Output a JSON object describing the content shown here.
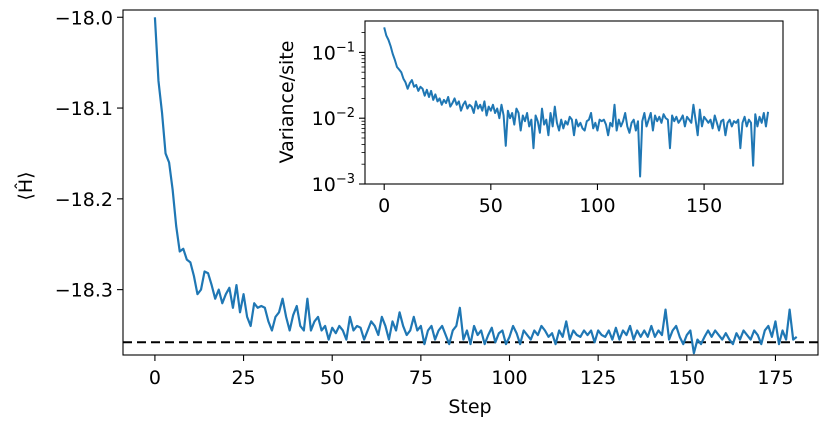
{
  "chart_data": [
    {
      "type": "line",
      "title": "",
      "xlabel": "Step",
      "ylabel": "⟨Ĥ⟩",
      "xlim": [
        -9,
        187
      ],
      "ylim": [
        -18.372,
        -17.992
      ],
      "xticks": [
        0,
        25,
        50,
        75,
        100,
        125,
        150,
        175
      ],
      "yticks": [
        -18.0,
        -18.1,
        -18.2,
        -18.3
      ],
      "ytick_labels": [
        "−18.0",
        "−18.1",
        "−18.2",
        "−18.3"
      ],
      "grid": false,
      "reference_line": {
        "y": -18.358,
        "style": "dashed",
        "color": "#000000"
      },
      "series": [
        {
          "color": "#1f77b4",
          "values": [
            -18.0,
            -18.07,
            -18.105,
            -18.15,
            -18.16,
            -18.19,
            -18.23,
            -18.258,
            -18.255,
            -18.267,
            -18.27,
            -18.285,
            -18.305,
            -18.3,
            -18.28,
            -18.282,
            -18.295,
            -18.31,
            -18.3,
            -18.315,
            -18.305,
            -18.298,
            -18.32,
            -18.295,
            -18.325,
            -18.305,
            -18.33,
            -18.34,
            -18.315,
            -18.32,
            -18.318,
            -18.32,
            -18.335,
            -18.345,
            -18.33,
            -18.325,
            -18.31,
            -18.33,
            -18.345,
            -18.328,
            -18.318,
            -18.34,
            -18.345,
            -18.31,
            -18.345,
            -18.335,
            -18.33,
            -18.345,
            -18.34,
            -18.355,
            -18.342,
            -18.348,
            -18.34,
            -18.345,
            -18.355,
            -18.33,
            -18.345,
            -18.34,
            -18.342,
            -18.355,
            -18.345,
            -18.335,
            -18.34,
            -18.35,
            -18.33,
            -18.34,
            -18.355,
            -18.335,
            -18.345,
            -18.325,
            -18.34,
            -18.35,
            -18.345,
            -18.33,
            -18.345,
            -18.34,
            -18.36,
            -18.345,
            -18.34,
            -18.355,
            -18.345,
            -18.34,
            -18.35,
            -18.36,
            -18.345,
            -18.34,
            -18.32,
            -18.355,
            -18.345,
            -18.36,
            -18.34,
            -18.35,
            -18.345,
            -18.36,
            -18.35,
            -18.342,
            -18.358,
            -18.348,
            -18.345,
            -18.36,
            -18.352,
            -18.34,
            -18.348,
            -18.36,
            -18.345,
            -18.35,
            -18.355,
            -18.345,
            -18.35,
            -18.34,
            -18.345,
            -18.352,
            -18.348,
            -18.36,
            -18.345,
            -18.352,
            -18.335,
            -18.355,
            -18.345,
            -18.35,
            -18.352,
            -18.345,
            -18.35,
            -18.345,
            -18.358,
            -18.345,
            -18.35,
            -18.352,
            -18.345,
            -18.355,
            -18.342,
            -18.355,
            -18.345,
            -18.35,
            -18.34,
            -18.355,
            -18.345,
            -18.352,
            -18.345,
            -18.352,
            -18.34,
            -18.352,
            -18.345,
            -18.35,
            -18.322,
            -18.355,
            -18.345,
            -18.34,
            -18.352,
            -18.36,
            -18.35,
            -18.345,
            -18.37,
            -18.355,
            -18.36,
            -18.352,
            -18.345,
            -18.352,
            -18.345,
            -18.35,
            -18.355,
            -18.348,
            -18.355,
            -18.36,
            -18.348,
            -18.355,
            -18.345,
            -18.35,
            -18.355,
            -18.345,
            -18.35,
            -18.36,
            -18.345,
            -18.34,
            -18.352,
            -18.335,
            -18.36,
            -18.345,
            -18.355,
            -18.322,
            -18.355,
            -18.352
          ]
        }
      ]
    },
    {
      "type": "line",
      "title": "",
      "xlabel": "",
      "ylabel": "Variance/site",
      "xlim": [
        -9,
        187
      ],
      "ylim": [
        0.001,
        0.3
      ],
      "yscale": "log",
      "xticks": [
        0,
        50,
        100,
        150
      ],
      "yticks": [
        0.001,
        0.01,
        0.1
      ],
      "ytick_labels": [
        {
          "base": "10",
          "exp": "−3"
        },
        {
          "base": "10",
          "exp": "−2"
        },
        {
          "base": "10",
          "exp": "−1"
        }
      ],
      "grid": false,
      "series": [
        {
          "color": "#1f77b4",
          "values": [
            0.24,
            0.18,
            0.155,
            0.125,
            0.095,
            0.077,
            0.06,
            0.055,
            0.05,
            0.04,
            0.035,
            0.028,
            0.034,
            0.038,
            0.03,
            0.032,
            0.026,
            0.03,
            0.028,
            0.022,
            0.027,
            0.021,
            0.026,
            0.019,
            0.023,
            0.018,
            0.02,
            0.016,
            0.019,
            0.017,
            0.021,
            0.015,
            0.017,
            0.02,
            0.016,
            0.018,
            0.013,
            0.016,
            0.018,
            0.014,
            0.016,
            0.015,
            0.012,
            0.018,
            0.014,
            0.016,
            0.013,
            0.018,
            0.011,
            0.015,
            0.013,
            0.016,
            0.012,
            0.014,
            0.01,
            0.016,
            0.011,
            0.0038,
            0.013,
            0.01,
            0.012,
            0.008,
            0.014,
            0.012,
            0.0065,
            0.011,
            0.009,
            0.012,
            0.0075,
            0.0095,
            0.0035,
            0.011,
            0.009,
            0.006,
            0.014,
            0.008,
            0.0095,
            0.0055,
            0.012,
            0.0075,
            0.015,
            0.0085,
            0.0065,
            0.0095,
            0.007,
            0.009,
            0.008,
            0.0105,
            0.0095,
            0.0055,
            0.0095,
            0.0075,
            0.0085,
            0.007,
            0.0065,
            0.009,
            0.0095,
            0.012,
            0.007,
            0.0085,
            0.0065,
            0.0095,
            0.009,
            0.0095,
            0.008,
            0.0055,
            0.0085,
            0.0075,
            0.016,
            0.0065,
            0.0095,
            0.0075,
            0.009,
            0.012,
            0.0075,
            0.006,
            0.0085,
            0.0095,
            0.0065,
            0.009,
            0.0013,
            0.009,
            0.012,
            0.0075,
            0.0095,
            0.012,
            0.0065,
            0.011,
            0.009,
            0.0105,
            0.0085,
            0.0115,
            0.01,
            0.0095,
            0.0035,
            0.011,
            0.009,
            0.0105,
            0.0085,
            0.0095,
            0.011,
            0.0075,
            0.0105,
            0.0095,
            0.0085,
            0.016,
            0.0095,
            0.0055,
            0.0135,
            0.0075,
            0.0105,
            0.0095,
            0.0085,
            0.0095,
            0.007,
            0.011,
            0.0085,
            0.0065,
            0.009,
            0.0095,
            0.0055,
            0.0085,
            0.0095,
            0.0075,
            0.009,
            0.0085,
            0.0095,
            0.0035,
            0.0085,
            0.0105,
            0.0075,
            0.0095,
            0.0085,
            0.0019,
            0.0115,
            0.0075,
            0.0105,
            0.0085,
            0.012,
            0.0075,
            0.0125
          ]
        }
      ]
    }
  ]
}
